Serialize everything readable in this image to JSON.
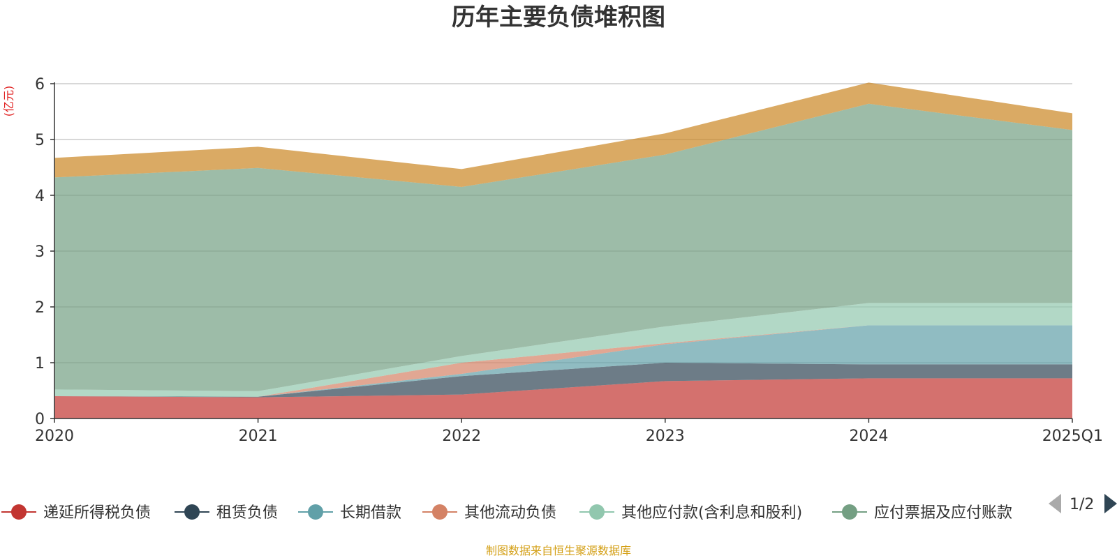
{
  "chart_data": {
    "type": "area",
    "stacked": true,
    "title": "历年主要负债堆积图",
    "unit": "(亿元)",
    "categories": [
      "2020",
      "2021",
      "2022",
      "2023",
      "2024",
      "2025Q1"
    ],
    "ylim": [
      0,
      6
    ],
    "yticks": [
      "0",
      "1",
      "2",
      "3",
      "4",
      "5",
      "6"
    ],
    "grid": true,
    "legend_position": "bottom",
    "series": [
      {
        "name": "递延所得税负债",
        "color": "#c23531",
        "values": [
          0.4,
          0.38,
          0.43,
          0.67,
          0.72,
          0.72
        ]
      },
      {
        "name": "租赁负债",
        "color": "#2f4554",
        "values": [
          0.0,
          0.01,
          0.33,
          0.33,
          0.25,
          0.25
        ]
      },
      {
        "name": "长期借款",
        "color": "#61a0a8",
        "values": [
          0.0,
          0.0,
          0.04,
          0.33,
          0.7,
          0.7
        ]
      },
      {
        "name": "其他流动负债",
        "color": "#d48265",
        "values": [
          0.0,
          0.0,
          0.2,
          0.02,
          0.0,
          0.0
        ]
      },
      {
        "name": "其他应付款(含利息和股利)",
        "color": "#91c7ae",
        "values": [
          0.12,
          0.1,
          0.12,
          0.3,
          0.4,
          0.4
        ]
      },
      {
        "name": "应付票据及应付账款",
        "color": "#749f83",
        "values": [
          3.8,
          4.0,
          3.03,
          3.08,
          3.57,
          3.1
        ]
      },
      {
        "name": "",
        "color": "#ca8622",
        "values": [
          0.35,
          0.38,
          0.32,
          0.38,
          0.38,
          0.3
        ]
      }
    ],
    "legend_pager": "1/2",
    "source": "制图数据来自恒生聚源数据库"
  }
}
